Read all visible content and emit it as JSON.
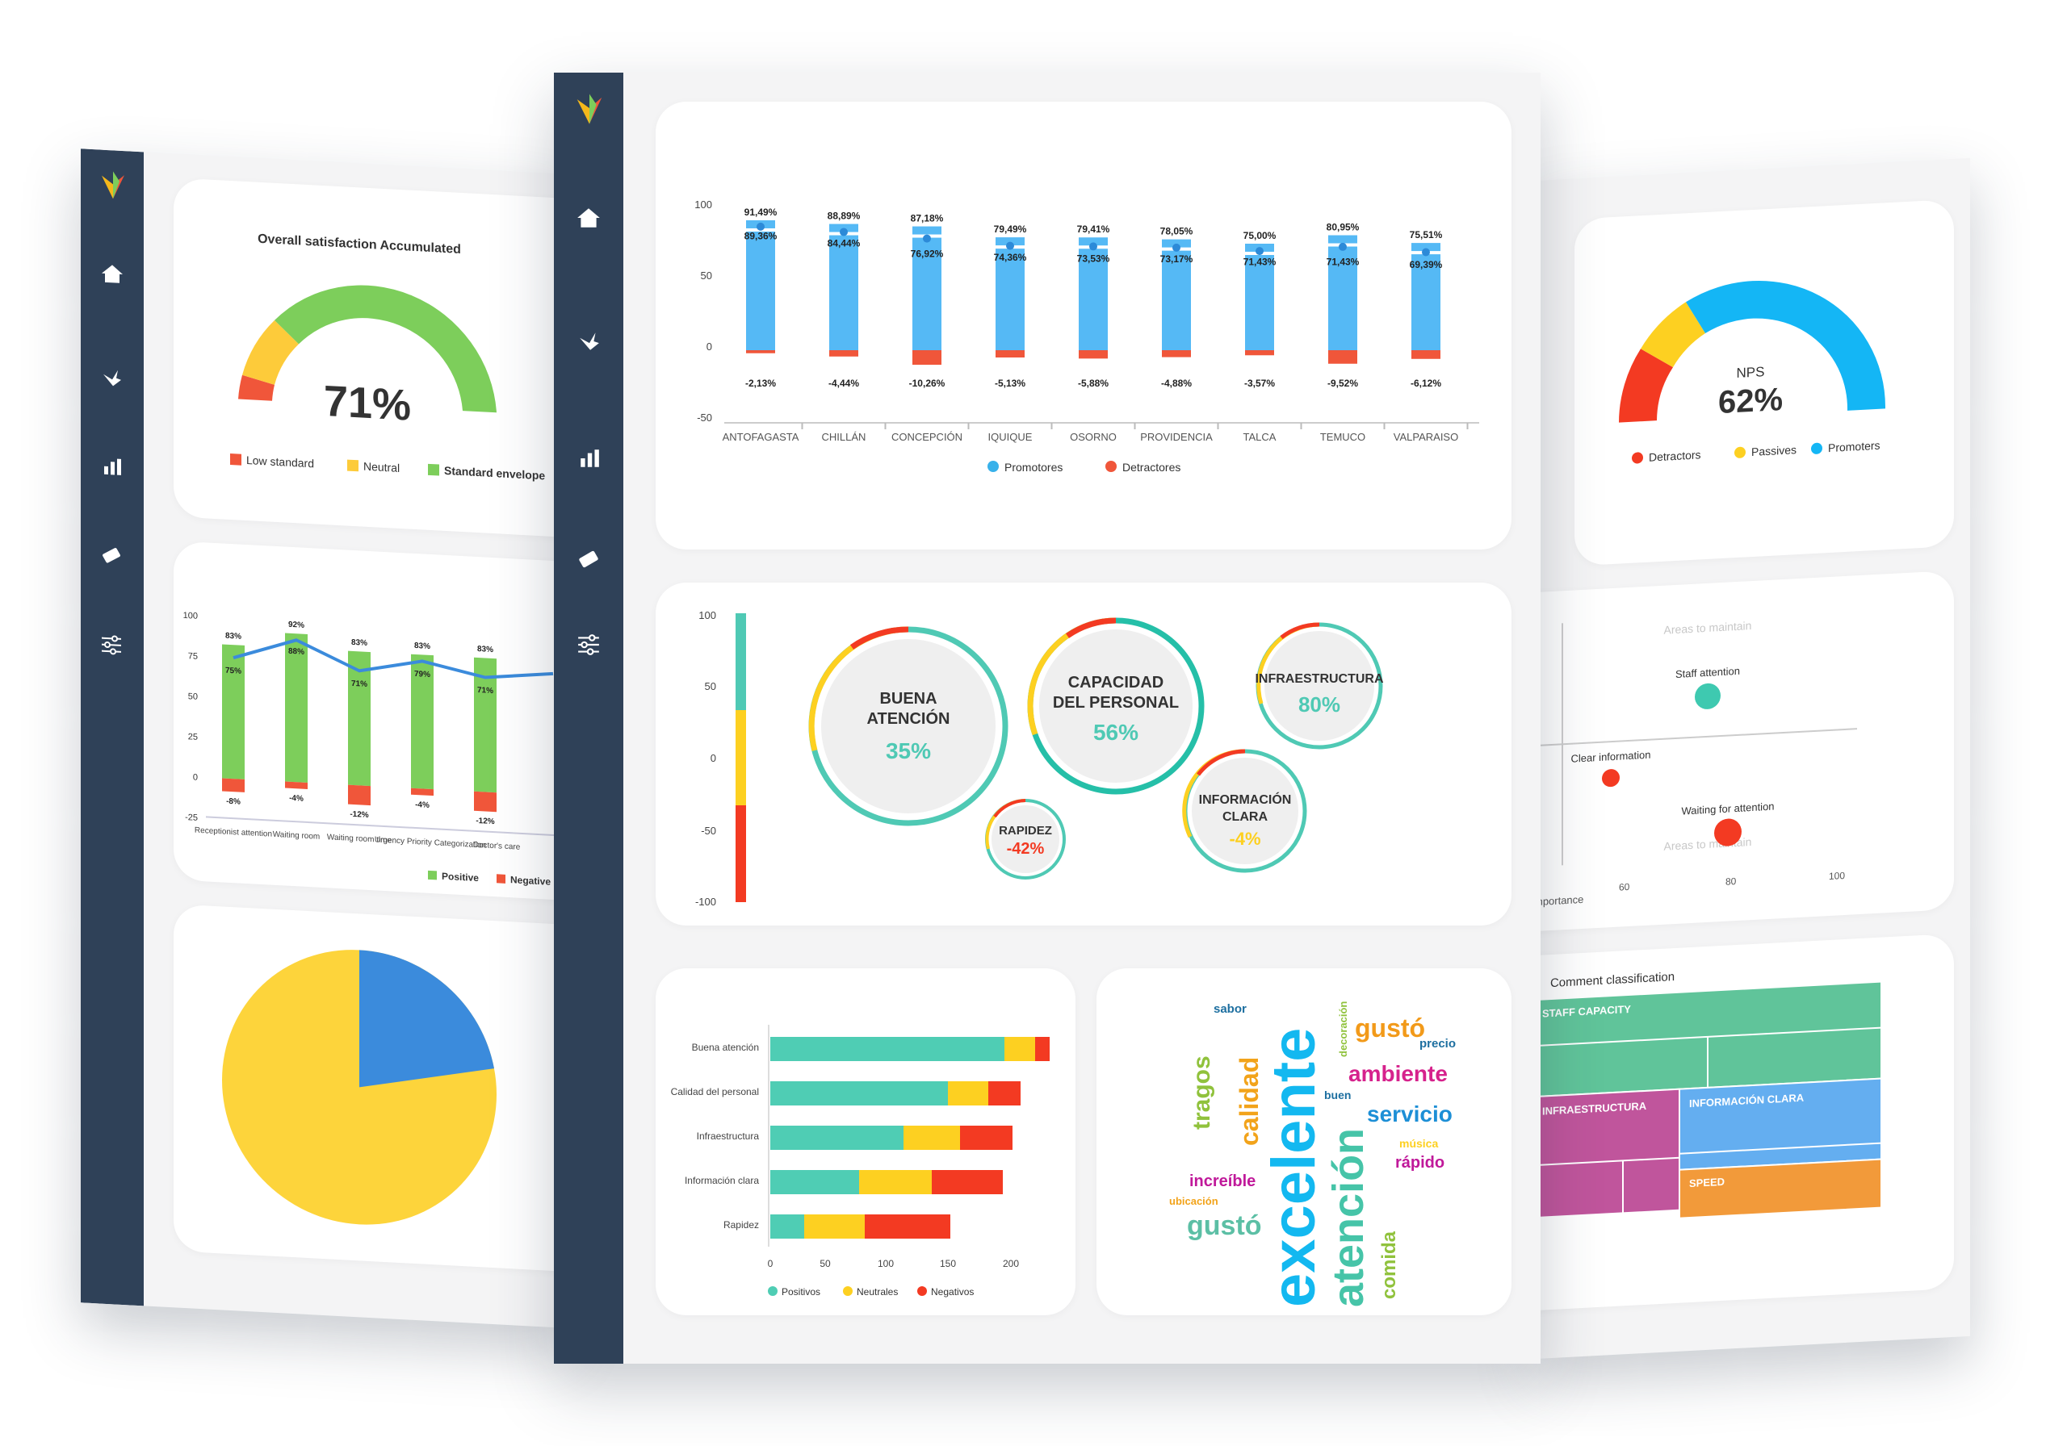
{
  "left_screen": {
    "gauge": {
      "title": "Overall satisfaction Accumulated",
      "value_label": "71%",
      "legend": [
        "Low standard",
        "Neutral",
        "Standard envelope"
      ],
      "colors": [
        "#f0563a",
        "#fdcb3a",
        "#7dce5b"
      ]
    },
    "bar_chart": {
      "y_ticks": [
        "100",
        "75",
        "50",
        "25",
        "0",
        "-25"
      ],
      "categories": [
        "Receptionist attention",
        "Waiting room",
        "Waiting room time",
        "Urgency Priority Categorization",
        "Doctor's care"
      ],
      "positive_labels": [
        "83%",
        "92%",
        "83%",
        "83%",
        "83%"
      ],
      "line_labels": [
        "75%",
        "88%",
        "71%",
        "79%",
        "71%"
      ],
      "negative_labels": [
        "-8%",
        "-4%",
        "-12%",
        "-4%",
        "-12%"
      ],
      "legend": [
        "Positive",
        "Negative"
      ]
    },
    "pie": {
      "blue_share": 0.25,
      "yellow_share": 0.75
    }
  },
  "center_screen": {
    "bar_chart": {
      "y_ticks": [
        "100",
        "50",
        "0",
        "-50"
      ],
      "categories": [
        "ANTOFAGASTA",
        "CHILLÁN",
        "CONCEPCIÓN",
        "IQUIQUE",
        "OSORNO",
        "PROVIDENCIA",
        "TALCA",
        "TEMUCO",
        "VALPARAISO"
      ],
      "top_labels": [
        "91,49%",
        "88,89%",
        "87,18%",
        "79,49%",
        "79,41%",
        "78,05%",
        "75,00%",
        "80,95%",
        "75,51%"
      ],
      "mid_labels": [
        "89,36%",
        "84,44%",
        "76,92%",
        "74,36%",
        "73,53%",
        "73,17%",
        "71,43%",
        "71,43%",
        "69,39%"
      ],
      "neg_labels": [
        "-2,13%",
        "-4,44%",
        "-10,26%",
        "-5,13%",
        "-5,88%",
        "-4,88%",
        "-3,57%",
        "-9,52%",
        "-6,12%"
      ],
      "legend": [
        "Promotores",
        "Detractores"
      ]
    },
    "bubbles": {
      "y_ticks": [
        "100",
        "50",
        "0",
        "-50",
        "-100"
      ],
      "items": [
        {
          "l1": "BUENA",
          "l2": "ATENCIÓN",
          "pct": "35%"
        },
        {
          "l1": "CAPACIDAD",
          "l2": "DEL PERSONAL",
          "pct": "56%"
        },
        {
          "l1": "INFRAESTRUCTURA",
          "l2": "",
          "pct": "80%"
        },
        {
          "l1": "INFORMACIÓN",
          "l2": "CLARA",
          "pct": "-4%"
        },
        {
          "l1": "RAPIDEZ",
          "l2": "",
          "pct": "-42%"
        }
      ]
    },
    "hbar": {
      "categories": [
        "Buena atención",
        "Calidad del personal",
        "Infraestructura",
        "Información clara",
        "Rapidez"
      ],
      "x_ticks": [
        "0",
        "50",
        "100",
        "150",
        "200"
      ],
      "legend": [
        "Positivos",
        "Neutrales",
        "Negativos"
      ]
    },
    "wordcloud": [
      "excelente",
      "atención",
      "gustó",
      "ambiente",
      "servicio",
      "calidad",
      "tragos",
      "increíble",
      "gustó",
      "comida",
      "sabor",
      "decoración",
      "precio",
      "buen",
      "música",
      "rápido",
      "ubicación"
    ]
  },
  "right_screen": {
    "nps": {
      "title": "NPS",
      "value_label": "62%",
      "legend": [
        "Detractors",
        "Passives",
        "Promoters"
      ]
    },
    "quadrant": {
      "top_label": "Areas to maintain",
      "bottom_label": "Areas to maintain",
      "points": [
        "Staff attention",
        "Clear information",
        "Waiting for attention"
      ],
      "x_ticks": [
        "60",
        "80",
        "100"
      ],
      "x_axis_label": "mportance"
    },
    "treemap": {
      "title": "Comment classification",
      "blocks": [
        "STAFF CAPACITY",
        "INFRAESTRUCTURA",
        "INFORMACIÓN CLARA",
        "SPEED"
      ]
    }
  }
}
